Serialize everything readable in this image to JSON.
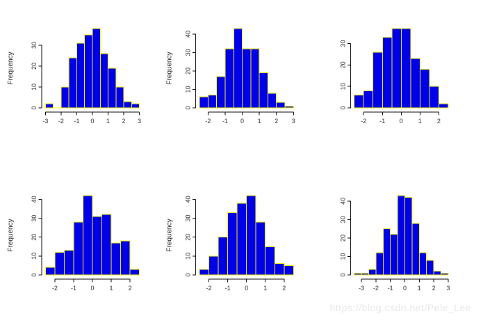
{
  "page": {
    "background": "#ffffff"
  },
  "watermark": {
    "text": "https://blog.csdn.net/Pele_Lee"
  },
  "colors": {
    "bar_fill": "#0000e8",
    "bar_border": "#ffff00",
    "axis": "#000000",
    "tick_label": "#222222",
    "watermark": "#e7e7e7"
  },
  "chart_data": [
    {
      "type": "bar",
      "subtype": "histogram",
      "title": "",
      "xlabel": "",
      "ylabel": "Frequency",
      "bin_start": -3.0,
      "bin_width": 0.5,
      "counts": [
        2,
        0,
        10,
        24,
        31,
        35,
        38,
        26,
        19,
        10,
        3,
        2
      ],
      "x_ticks": [
        -3,
        -2,
        -1,
        0,
        1,
        2,
        3
      ],
      "y_ticks": [
        0,
        10,
        20,
        30
      ],
      "xlim": [
        -3.0,
        3.0
      ],
      "ylim": [
        0,
        38
      ],
      "grid": false,
      "legend": "none"
    },
    {
      "type": "bar",
      "subtype": "histogram",
      "title": "",
      "xlabel": "",
      "ylabel": "Frequency",
      "bin_start": -2.5,
      "bin_width": 0.5,
      "counts": [
        6,
        7,
        17,
        32,
        43,
        32,
        32,
        19,
        8,
        3,
        1
      ],
      "x_ticks": [
        -2,
        -1,
        0,
        1,
        2,
        3
      ],
      "y_ticks": [
        0,
        10,
        20,
        30,
        40
      ],
      "xlim": [
        -2.5,
        3.0
      ],
      "ylim": [
        0,
        43
      ],
      "grid": false,
      "legend": "none"
    },
    {
      "type": "bar",
      "subtype": "histogram",
      "title": "",
      "xlabel": "",
      "ylabel": "Frequency",
      "bin_start": -2.5,
      "bin_width": 0.5,
      "counts": [
        6,
        8,
        26,
        33,
        37,
        37,
        23,
        18,
        10,
        2
      ],
      "x_ticks": [
        -2,
        -1,
        0,
        1,
        2
      ],
      "y_ticks": [
        0,
        10,
        20,
        30
      ],
      "xlim": [
        -2.5,
        2.5
      ],
      "ylim": [
        0,
        37
      ],
      "grid": false,
      "legend": "none"
    },
    {
      "type": "bar",
      "subtype": "histogram",
      "title": "",
      "xlabel": "",
      "ylabel": "Frequency",
      "bin_start": -2.5,
      "bin_width": 0.5,
      "counts": [
        4,
        12,
        13,
        28,
        42,
        31,
        32,
        17,
        18,
        3
      ],
      "x_ticks": [
        -2,
        -1,
        0,
        1,
        2
      ],
      "y_ticks": [
        0,
        10,
        20,
        30,
        40
      ],
      "xlim": [
        -2.5,
        2.5
      ],
      "ylim": [
        0,
        42
      ],
      "grid": false,
      "legend": "none"
    },
    {
      "type": "bar",
      "subtype": "histogram",
      "title": "",
      "xlabel": "",
      "ylabel": "Frequency",
      "bin_start": -2.5,
      "bin_width": 0.5,
      "counts": [
        3,
        10,
        20,
        33,
        38,
        42,
        28,
        15,
        6,
        5
      ],
      "x_ticks": [
        -2,
        -1,
        0,
        1,
        2
      ],
      "y_ticks": [
        0,
        10,
        20,
        30,
        40
      ],
      "xlim": [
        -2.5,
        2.5
      ],
      "ylim": [
        0,
        42
      ],
      "grid": false,
      "legend": "none"
    },
    {
      "type": "bar",
      "subtype": "histogram",
      "title": "",
      "xlabel": "",
      "ylabel": "Frequency",
      "bin_start": -3.5,
      "bin_width": 0.5,
      "counts": [
        1,
        1,
        3,
        12,
        25,
        22,
        43,
        42,
        28,
        12,
        8,
        2,
        1
      ],
      "x_ticks": [
        -3,
        -2,
        -1,
        0,
        1,
        2,
        3
      ],
      "y_ticks": [
        0,
        10,
        20,
        30,
        40
      ],
      "xlim": [
        -3.5,
        3.0
      ],
      "ylim": [
        0,
        43
      ],
      "grid": false,
      "legend": "none"
    }
  ]
}
